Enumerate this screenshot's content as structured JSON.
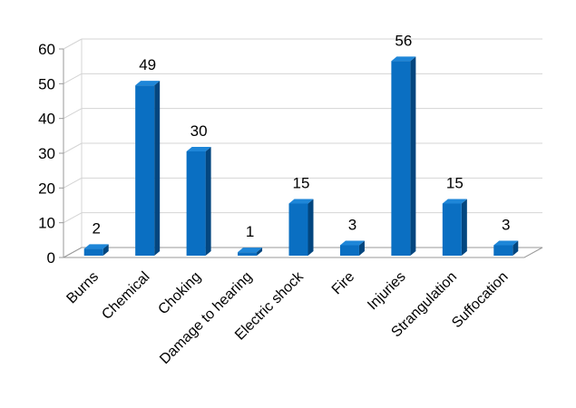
{
  "chart_data": {
    "type": "bar",
    "categories": [
      "Burns",
      "Chemical",
      "Choking",
      "Damage to hearing",
      "Electric shock",
      "Fire",
      "Injuries",
      "Strangulation",
      "Suffocation"
    ],
    "values": [
      2,
      49,
      30,
      1,
      15,
      3,
      56,
      15,
      3
    ],
    "data_labels": [
      "2",
      "49",
      "30",
      "1",
      "15",
      "3",
      "56",
      "15",
      "3"
    ],
    "ylim": [
      0,
      60
    ],
    "yticks": [
      0,
      10,
      20,
      30,
      40,
      50,
      60
    ],
    "grid": true,
    "bar_style": "3d",
    "legend": "none",
    "colors": {
      "bar_front": "#0a6fc2",
      "bar_side": "#03467f",
      "bar_top": "#1e86d8",
      "grid": "#d4d4d4",
      "axis": "#9a9a9a",
      "text": "#000000"
    }
  }
}
